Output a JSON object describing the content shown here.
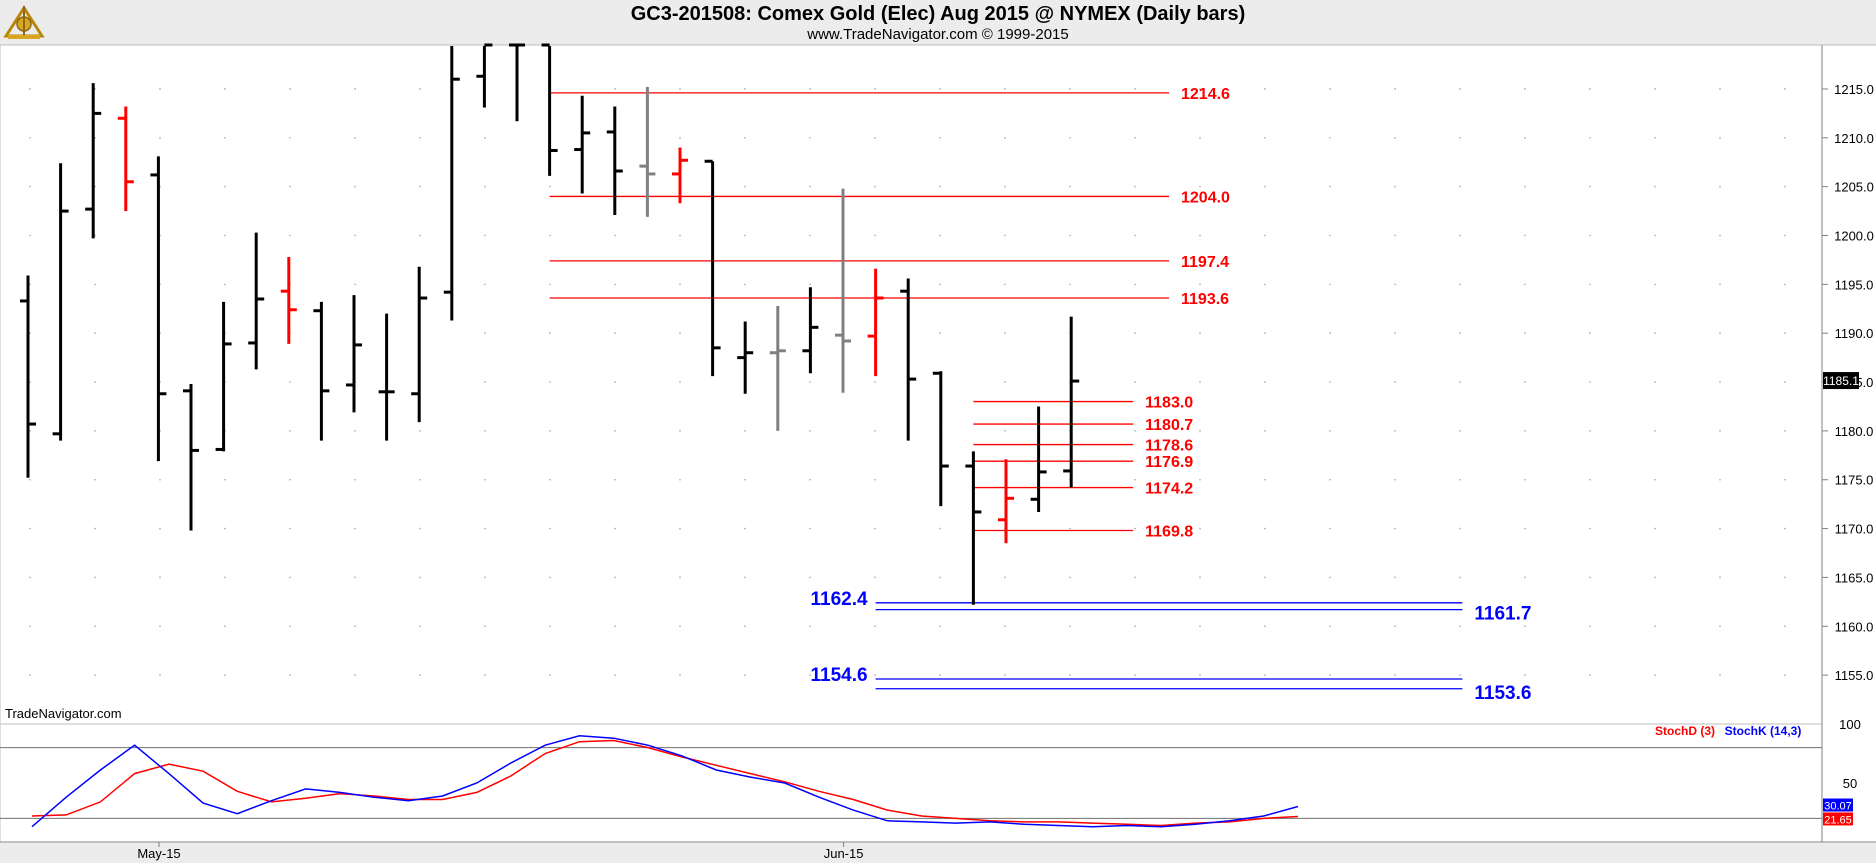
{
  "header": {
    "title": "GC3-201508:  Comex Gold (Elec) Aug 2015 @ NYMEX  (Daily bars)",
    "subtitle": "www.TradeNavigator.com © 1999-2015",
    "watermark": "TradeNavigator.com"
  },
  "chart_data": [
    {
      "type": "ohlc",
      "title": "GC3-201508:  Comex Gold (Elec) Aug 2015 @ NYMEX  (Daily bars)",
      "ylim": [
        1150.2,
        1219.5
      ],
      "yticks": [
        "1155.0",
        "1160.0",
        "1165.0",
        "1170.0",
        "1175.0",
        "1180.0",
        "1185.0",
        "1190.0",
        "1195.0",
        "1200.0",
        "1205.0",
        "1210.0",
        "1215.0"
      ],
      "xticks": [
        {
          "label": "May-15",
          "bar": 5
        },
        {
          "label": "Jun-15",
          "bar": 26
        }
      ],
      "last_price": "1185.1",
      "colors": {
        "down": "#000000",
        "up": "#ff0000",
        "neutral": "#808080"
      },
      "bars": [
        {
          "o": 1193.3,
          "h": 1195.9,
          "l": 1175.2,
          "c": 1180.7,
          "color": "down"
        },
        {
          "o": 1179.7,
          "h": 1207.4,
          "l": 1179.0,
          "c": 1202.5,
          "color": "down"
        },
        {
          "o": 1202.7,
          "h": 1215.6,
          "l": 1199.7,
          "c": 1212.5,
          "color": "down"
        },
        {
          "o": 1212.0,
          "h": 1213.2,
          "l": 1202.5,
          "c": 1205.5,
          "color": "up"
        },
        {
          "o": 1206.2,
          "h": 1208.1,
          "l": 1176.9,
          "c": 1183.8,
          "color": "down"
        },
        {
          "o": 1184.1,
          "h": 1184.8,
          "l": 1169.8,
          "c": 1178.0,
          "color": "down"
        },
        {
          "o": 1178.1,
          "h": 1193.2,
          "l": 1177.9,
          "c": 1188.9,
          "color": "down"
        },
        {
          "o": 1189.0,
          "h": 1200.3,
          "l": 1186.3,
          "c": 1193.5,
          "color": "down"
        },
        {
          "o": 1194.3,
          "h": 1197.8,
          "l": 1188.9,
          "c": 1192.4,
          "color": "up"
        },
        {
          "o": 1192.3,
          "h": 1193.2,
          "l": 1179.0,
          "c": 1184.1,
          "color": "down"
        },
        {
          "o": 1184.7,
          "h": 1193.9,
          "l": 1181.9,
          "c": 1188.8,
          "color": "down"
        },
        {
          "o": 1184.0,
          "h": 1192.0,
          "l": 1179.0,
          "c": 1184.0,
          "color": "down"
        },
        {
          "o": 1183.8,
          "h": 1196.8,
          "l": 1180.9,
          "c": 1193.6,
          "color": "down"
        },
        {
          "o": 1194.2,
          "h": 1219.5,
          "l": 1191.3,
          "c": 1216.0,
          "color": "down"
        },
        {
          "o": 1216.3,
          "h": 1219.5,
          "l": 1213.1,
          "c": 1219.5,
          "color": "down"
        },
        {
          "o": 1219.5,
          "h": 1219.5,
          "l": 1211.7,
          "c": 1219.5,
          "color": "down"
        },
        {
          "o": 1219.5,
          "h": 1219.5,
          "l": 1206.1,
          "c": 1208.7,
          "color": "down"
        },
        {
          "o": 1208.8,
          "h": 1214.3,
          "l": 1204.3,
          "c": 1210.5,
          "color": "down"
        },
        {
          "o": 1210.6,
          "h": 1213.2,
          "l": 1202.1,
          "c": 1206.6,
          "color": "down"
        },
        {
          "o": 1207.1,
          "h": 1215.2,
          "l": 1201.9,
          "c": 1206.3,
          "color": "neutral"
        },
        {
          "o": 1206.3,
          "h": 1209.0,
          "l": 1203.3,
          "c": 1207.7,
          "color": "up"
        },
        {
          "o": 1207.6,
          "h": 1207.6,
          "l": 1185.6,
          "c": 1188.5,
          "color": "down"
        },
        {
          "o": 1187.5,
          "h": 1191.2,
          "l": 1183.8,
          "c": 1188.0,
          "color": "down"
        },
        {
          "o": 1188.0,
          "h": 1192.8,
          "l": 1180.0,
          "c": 1188.2,
          "color": "neutral"
        },
        {
          "o": 1188.2,
          "h": 1194.7,
          "l": 1185.9,
          "c": 1190.6,
          "color": "down"
        },
        {
          "o": 1189.8,
          "h": 1204.8,
          "l": 1183.9,
          "c": 1189.2,
          "color": "neutral"
        },
        {
          "o": 1189.7,
          "h": 1196.6,
          "l": 1185.6,
          "c": 1193.6,
          "color": "up"
        },
        {
          "o": 1194.3,
          "h": 1195.6,
          "l": 1179.0,
          "c": 1185.3,
          "color": "down"
        },
        {
          "o": 1185.9,
          "h": 1186.1,
          "l": 1172.3,
          "c": 1176.4,
          "color": "down"
        },
        {
          "o": 1176.4,
          "h": 1177.9,
          "l": 1162.2,
          "c": 1171.7,
          "color": "down"
        },
        {
          "o": 1170.9,
          "h": 1177.1,
          "l": 1168.5,
          "c": 1173.1,
          "color": "up"
        },
        {
          "o": 1173.0,
          "h": 1182.5,
          "l": 1171.7,
          "c": 1175.8,
          "color": "down"
        },
        {
          "o": 1175.9,
          "h": 1191.7,
          "l": 1174.2,
          "c": 1185.1,
          "color": "down"
        }
      ],
      "levels": [
        {
          "value": "1214.6",
          "color": "#ff0000",
          "x_from_bar": 16,
          "x_to_bar": 35,
          "label_side": "right"
        },
        {
          "value": "1204.0",
          "color": "#ff0000",
          "x_from_bar": 16,
          "x_to_bar": 35,
          "label_side": "right"
        },
        {
          "value": "1197.4",
          "color": "#ff0000",
          "x_from_bar": 16,
          "x_to_bar": 35,
          "label_side": "right"
        },
        {
          "value": "1193.6",
          "color": "#ff0000",
          "x_from_bar": 16,
          "x_to_bar": 35,
          "label_side": "right"
        },
        {
          "value": "1183.0",
          "color": "#ff0000",
          "x_from_bar": 29,
          "x_to_bar": 33.9,
          "label_side": "right"
        },
        {
          "value": "1180.7",
          "color": "#ff0000",
          "x_from_bar": 29,
          "x_to_bar": 33.9,
          "label_side": "right"
        },
        {
          "value": "1178.6",
          "color": "#ff0000",
          "x_from_bar": 29,
          "x_to_bar": 33.9,
          "label_side": "right"
        },
        {
          "value": "1176.9",
          "color": "#ff0000",
          "x_from_bar": 29,
          "x_to_bar": 33.9,
          "label_side": "right"
        },
        {
          "value": "1174.2",
          "color": "#ff0000",
          "x_from_bar": 29,
          "x_to_bar": 33.9,
          "label_side": "right"
        },
        {
          "value": "1169.8",
          "color": "#ff0000",
          "x_from_bar": 29,
          "x_to_bar": 33.9,
          "label_side": "right"
        },
        {
          "value": "1162.4",
          "color": "#0000ff",
          "x_from_bar": 26,
          "x_to_bar": 44,
          "label_side": "left"
        },
        {
          "value": "1161.7",
          "color": "#0000ff",
          "x_from_bar": 26,
          "x_to_bar": 44,
          "label_side": "right"
        },
        {
          "value": "1154.6",
          "color": "#0000ff",
          "x_from_bar": 26,
          "x_to_bar": 44,
          "label_side": "left"
        },
        {
          "value": "1153.6",
          "color": "#0000ff",
          "x_from_bar": 26,
          "x_to_bar": 44,
          "label_side": "right"
        }
      ]
    },
    {
      "type": "line",
      "ylim": [
        0,
        100
      ],
      "yticks": [
        "100",
        "50"
      ],
      "reference_lines": [
        80,
        20
      ],
      "series": [
        {
          "name": "StochD (3)",
          "color": "#ff0000",
          "last": "21.65",
          "values": [
            22,
            23,
            34,
            58,
            66,
            60,
            43,
            34,
            37,
            41,
            39,
            36,
            36,
            42,
            56,
            75,
            85,
            86,
            80,
            72,
            65,
            58,
            51,
            43,
            36,
            27,
            22,
            20,
            18,
            17,
            17,
            16,
            15,
            14,
            16,
            17,
            20,
            21.65
          ]
        },
        {
          "name": "StochK (14,3)",
          "color": "#0000ff",
          "last": "30.07",
          "values": [
            13,
            38,
            61,
            82,
            58,
            33,
            24,
            35,
            45,
            42,
            38,
            35,
            39,
            50,
            67,
            82,
            90,
            88,
            82,
            73,
            61,
            55,
            50,
            38,
            27,
            18,
            17,
            16,
            17,
            15,
            14,
            13,
            14,
            13,
            15,
            18,
            22,
            30.07
          ]
        }
      ]
    }
  ]
}
